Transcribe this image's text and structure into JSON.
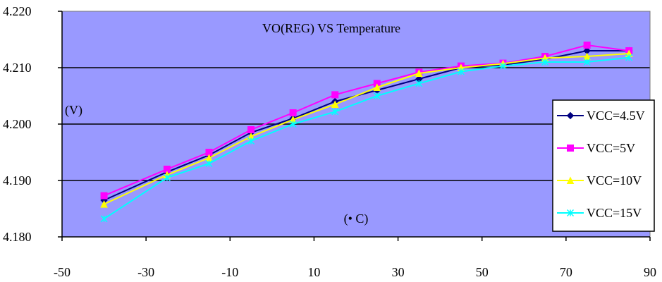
{
  "chart_data": {
    "type": "line",
    "title": "VO(REG) VS Temperature",
    "ylabel": "(V)",
    "xlabel": "(• C)",
    "xlim": [
      -50,
      90
    ],
    "ylim": [
      4.18,
      4.22
    ],
    "x_ticks": [
      -50,
      -30,
      -10,
      10,
      30,
      50,
      70,
      90
    ],
    "y_ticks": [
      4.18,
      4.19,
      4.2,
      4.21,
      4.22
    ],
    "x_tick_labels": [
      "-50",
      "-30",
      "-10",
      "10",
      "30",
      "50",
      "70",
      "90"
    ],
    "y_tick_labels": [
      "4.180",
      "4.190",
      "4.200",
      "4.210",
      "4.220"
    ],
    "grid": "horizontal",
    "legend_position": "right",
    "plot_background": "#9999ff",
    "x": [
      -40,
      -25,
      -15,
      -5,
      5,
      15,
      25,
      35,
      45,
      55,
      65,
      75,
      85
    ],
    "series": [
      {
        "name": "VCC=4.5V",
        "color": "#000080",
        "marker": "diamond",
        "values": [
          4.1865,
          4.1915,
          4.1945,
          4.1985,
          4.201,
          4.204,
          4.206,
          4.208,
          4.21,
          4.2105,
          4.2115,
          4.213,
          4.213
        ]
      },
      {
        "name": "VCC=5V",
        "color": "#ff00ff",
        "marker": "square",
        "values": [
          4.1873,
          4.192,
          4.195,
          4.199,
          4.202,
          4.2052,
          4.2072,
          4.2092,
          4.2103,
          4.2108,
          4.212,
          4.214,
          4.213
        ]
      },
      {
        "name": "VCC=10V",
        "color": "#ffff00",
        "marker": "triangle",
        "values": [
          4.1858,
          4.191,
          4.194,
          4.1978,
          4.2008,
          4.2035,
          4.2065,
          4.209,
          4.21,
          4.2107,
          4.2117,
          4.212,
          4.2125
        ]
      },
      {
        "name": "VCC=15V",
        "color": "#00ffff",
        "marker": "x",
        "values": [
          4.1832,
          4.1905,
          4.193,
          4.197,
          4.2,
          4.2022,
          4.205,
          4.2072,
          4.2093,
          4.2103,
          4.211,
          4.211,
          4.2118
        ]
      }
    ]
  }
}
